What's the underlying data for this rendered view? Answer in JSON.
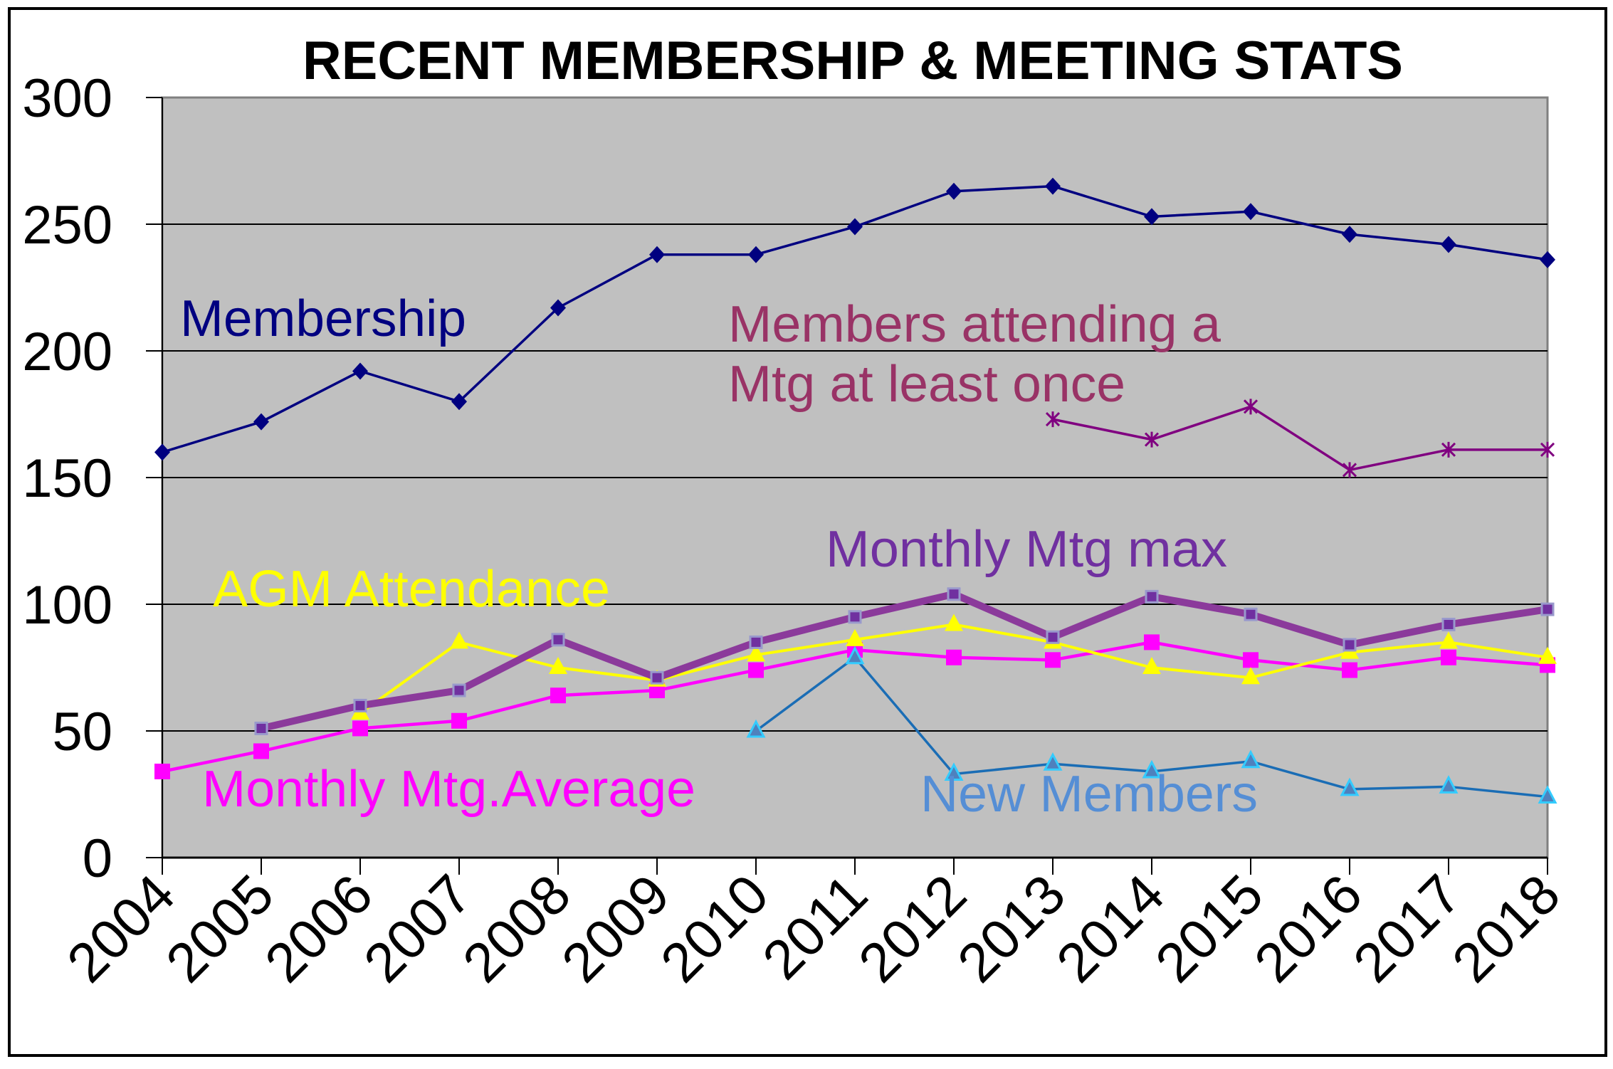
{
  "chart_data": {
    "type": "line",
    "title": "RECENT MEMBERSHIP & MEETING STATS",
    "xlabel": "",
    "ylabel": "",
    "ylim": [
      0,
      300
    ],
    "yticks": [
      "0",
      "50",
      "100",
      "150",
      "200",
      "250",
      "300"
    ],
    "grid": true,
    "legend": "none (inline series labels)",
    "categories": [
      "2004",
      "2005",
      "2006",
      "2007",
      "2008",
      "2009",
      "2010",
      "2011",
      "2012",
      "2013",
      "2014",
      "2015",
      "2016",
      "2017",
      "2018"
    ],
    "series": [
      {
        "name": "Membership",
        "label": "Membership",
        "color": "#000080",
        "label_color": "#000080",
        "marker": "diamond",
        "values": [
          160,
          172,
          192,
          180,
          217,
          238,
          238,
          249,
          263,
          265,
          253,
          255,
          246,
          242,
          236
        ]
      },
      {
        "name": "Members attending a Mtg at least once",
        "label_lines": [
          "Members attending a",
          "Mtg at least once"
        ],
        "color": "#800080",
        "label_color": "#993366",
        "marker": "asterisk",
        "values": [
          null,
          null,
          null,
          null,
          null,
          null,
          null,
          null,
          null,
          173,
          165,
          178,
          153,
          161,
          161
        ]
      },
      {
        "name": "Monthly Mtg.Average",
        "label": "Monthly Mtg.Average",
        "color": "#FF00FF",
        "label_color": "#FF00FF",
        "marker": "square",
        "values": [
          34,
          42,
          51,
          54,
          64,
          66,
          74,
          82,
          79,
          78,
          85,
          78,
          74,
          79,
          76
        ]
      },
      {
        "name": "AGM Attendance",
        "label": "AGM Attendance",
        "color": "#FFFF00",
        "label_color": "#FFFF00",
        "marker": "triangle",
        "values": [
          null,
          null,
          57,
          85,
          75,
          70,
          80,
          86,
          92,
          85,
          75,
          71,
          81,
          85,
          79
        ]
      },
      {
        "name": "Monthly Mtg max",
        "label": "Monthly Mtg max",
        "color": "#8B3A9B",
        "label_color": "#7030A0",
        "marker": "square-outlined",
        "values": [
          null,
          51,
          60,
          66,
          86,
          71,
          85,
          95,
          104,
          87,
          103,
          96,
          84,
          92,
          98
        ]
      },
      {
        "name": "New Members",
        "label": "New Members",
        "color": "#1A6DB5",
        "label_color": "#558ED5",
        "marker": "triangle-outlined",
        "values": [
          null,
          null,
          null,
          null,
          null,
          null,
          50,
          79,
          33,
          37,
          34,
          38,
          27,
          28,
          24
        ]
      }
    ]
  }
}
